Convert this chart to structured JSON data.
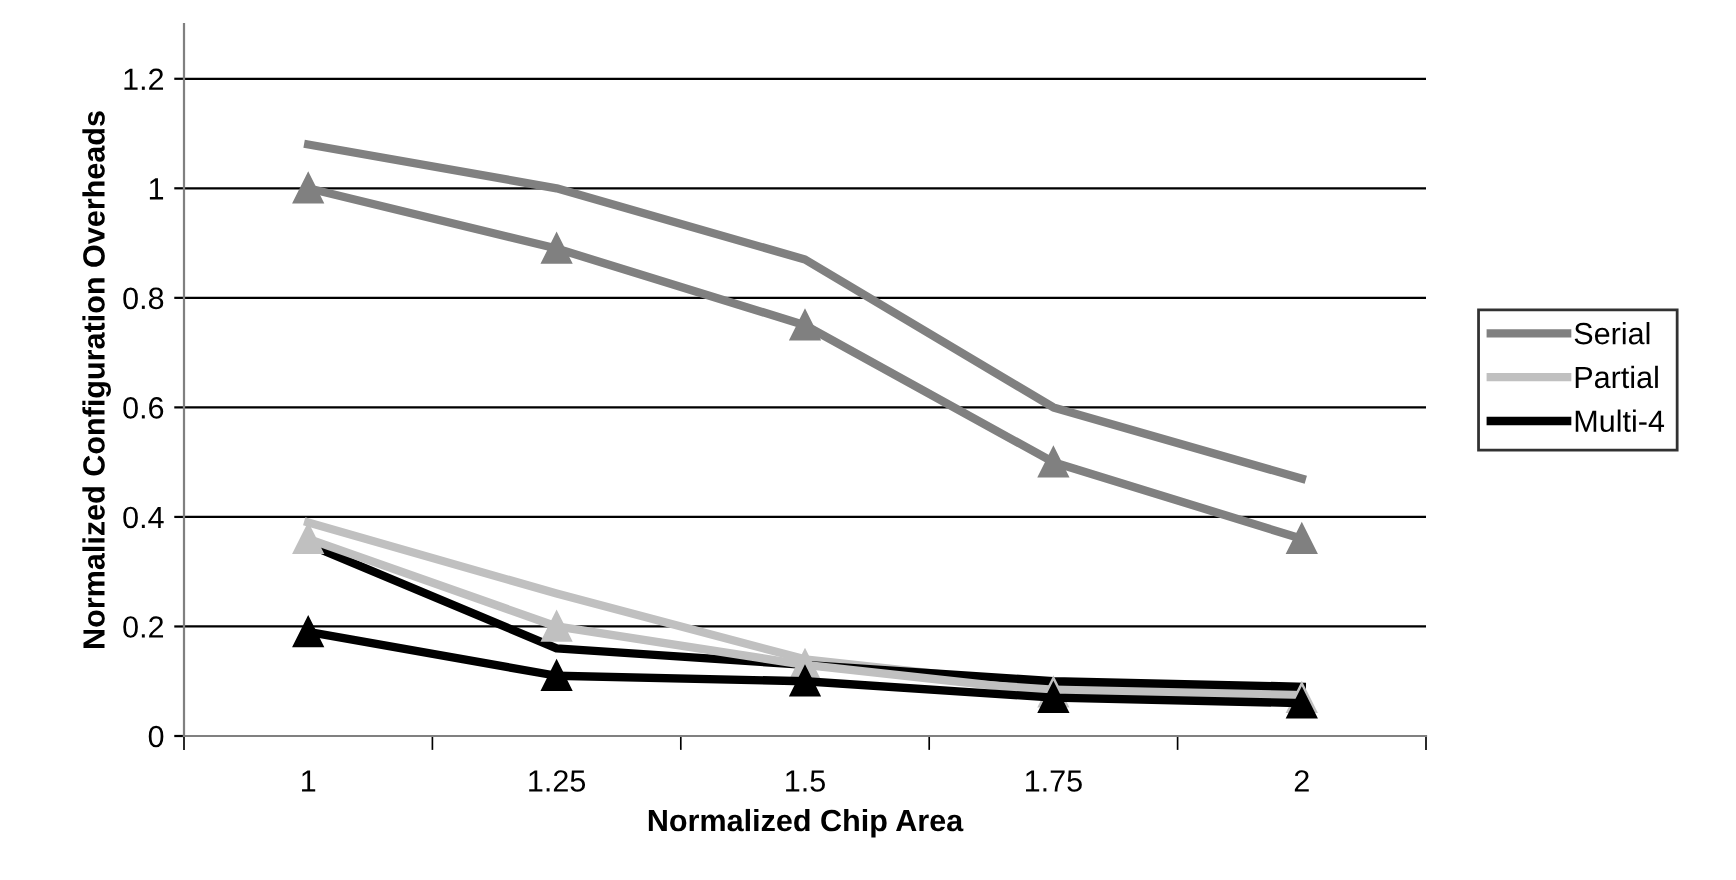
{
  "chart_data": {
    "type": "line",
    "xlabel": "Normalized Chip Area",
    "ylabel": "Normalized Configuration Overheads",
    "categories": [
      "1",
      "1.25",
      "1.5",
      "1.75",
      "2"
    ],
    "series": [
      {
        "name": "Serial",
        "color": "#808080",
        "marker": "none",
        "values": [
          1.08,
          1.0,
          0.87,
          0.6,
          0.47
        ]
      },
      {
        "name": "Partial",
        "color": "#c0c0c0",
        "marker": "none",
        "values": [
          0.39,
          0.26,
          0.14,
          0.09,
          0.08
        ]
      },
      {
        "name": "Multi-4",
        "color": "#000000",
        "marker": "none",
        "values": [
          0.35,
          0.16,
          0.13,
          0.1,
          0.09
        ]
      },
      {
        "color": "#808080",
        "marker": "triangle",
        "values": [
          1.0,
          0.89,
          0.75,
          0.5,
          0.36
        ]
      },
      {
        "color": "#c0c0c0",
        "marker": "triangle",
        "values": [
          0.36,
          0.2,
          0.13,
          0.08,
          0.07
        ]
      },
      {
        "color": "#000000",
        "marker": "triangle",
        "values": [
          0.19,
          0.11,
          0.1,
          0.07,
          0.06
        ]
      }
    ],
    "ylim": [
      0,
      1.3
    ],
    "yticks": [
      0,
      0.2,
      0.4,
      0.6,
      0.8,
      1,
      1.2
    ],
    "grid": "y",
    "legend": "right"
  }
}
